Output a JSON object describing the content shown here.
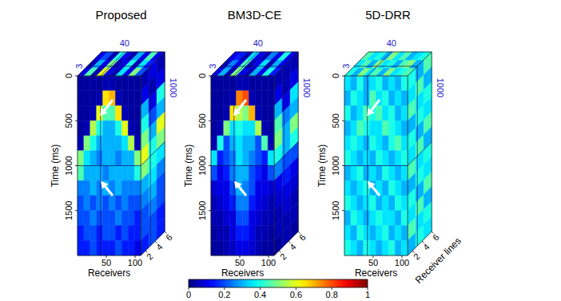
{
  "chart_data": {
    "type": "heatmap",
    "panels": [
      {
        "title": "Proposed",
        "xlabel": "Receivers",
        "ylabel": "Time (ms)",
        "xlim": [
          0,
          110
        ],
        "xticks": [
          50,
          100
        ],
        "ylim": [
          0,
          2000
        ],
        "yticks": [
          0,
          500,
          1000,
          1500
        ],
        "zlim": [
          1,
          6
        ],
        "zticks": [
          2,
          4,
          6
        ],
        "slice": {
          "receiver": 40,
          "line": 3,
          "time": 1000
        },
        "cells": [
          [
            0.03,
            0.03,
            0.03,
            0.03,
            0.05,
            0.05,
            0.03,
            0.03,
            0.03,
            0.03
          ],
          [
            0.03,
            0.03,
            0.03,
            0.05,
            0.65,
            0.7,
            0.05,
            0.03,
            0.03,
            0.03
          ],
          [
            0.03,
            0.03,
            0.05,
            0.6,
            0.45,
            0.45,
            0.65,
            0.05,
            0.03,
            0.03
          ],
          [
            0.03,
            0.05,
            0.55,
            0.4,
            0.3,
            0.3,
            0.4,
            0.6,
            0.05,
            0.03
          ],
          [
            0.05,
            0.5,
            0.4,
            0.3,
            0.3,
            0.3,
            0.3,
            0.35,
            0.55,
            0.05
          ],
          [
            0.5,
            0.35,
            0.3,
            0.25,
            0.3,
            0.3,
            0.25,
            0.3,
            0.3,
            0.5
          ],
          [
            0.45,
            0.3,
            0.3,
            0.3,
            0.25,
            0.3,
            0.3,
            0.3,
            0.3,
            0.4
          ],
          [
            0.25,
            0.25,
            0.3,
            0.25,
            0.3,
            0.25,
            0.3,
            0.25,
            0.25,
            0.25
          ],
          [
            0.2,
            0.25,
            0.2,
            0.25,
            0.2,
            0.25,
            0.2,
            0.25,
            0.2,
            0.2
          ],
          [
            0.2,
            0.2,
            0.25,
            0.2,
            0.2,
            0.2,
            0.25,
            0.2,
            0.2,
            0.15
          ],
          [
            0.15,
            0.2,
            0.2,
            0.15,
            0.2,
            0.2,
            0.15,
            0.2,
            0.15,
            0.15
          ],
          [
            0.15,
            0.15,
            0.2,
            0.15,
            0.15,
            0.15,
            0.2,
            0.15,
            0.15,
            0.1
          ]
        ],
        "top_cells": [
          [
            0.1,
            0.45,
            0.05,
            0.6,
            0.1,
            0.05,
            0.35,
            0.1,
            0.5,
            0.2
          ],
          [
            0.05,
            0.3,
            0.1,
            0.5,
            0.05,
            0.1,
            0.4,
            0.05,
            0.35,
            0.15
          ],
          [
            0.1,
            0.2,
            0.05,
            0.4,
            0.1,
            0.05,
            0.3,
            0.1,
            0.45,
            0.1
          ]
        ],
        "side_cells": [
          [
            0.05,
            0.1,
            0.05
          ],
          [
            0.1,
            0.05,
            0.1
          ],
          [
            0.3,
            0.1,
            0.4
          ],
          [
            0.4,
            0.2,
            0.3
          ],
          [
            0.5,
            0.3,
            0.6
          ],
          [
            0.6,
            0.4,
            0.5
          ],
          [
            0.5,
            0.4,
            0.35
          ],
          [
            0.3,
            0.35,
            0.25
          ],
          [
            0.25,
            0.3,
            0.2
          ],
          [
            0.2,
            0.25,
            0.2
          ],
          [
            0.2,
            0.2,
            0.15
          ],
          [
            0.15,
            0.2,
            0.15
          ]
        ]
      },
      {
        "title": "BM3D-CE",
        "xlabel": "Receivers",
        "ylabel": "Time (ms)",
        "xlim": [
          0,
          110
        ],
        "xticks": [
          50,
          100
        ],
        "ylim": [
          0,
          2000
        ],
        "yticks": [
          0,
          500,
          1000,
          1500
        ],
        "zlim": [
          1,
          6
        ],
        "zticks": [
          2,
          4,
          6
        ],
        "slice": {
          "receiver": 40,
          "line": 3,
          "time": 1000
        },
        "cells": [
          [
            0.03,
            0.03,
            0.03,
            0.03,
            0.05,
            0.05,
            0.03,
            0.03,
            0.03,
            0.03
          ],
          [
            0.03,
            0.03,
            0.03,
            0.05,
            0.75,
            0.8,
            0.05,
            0.03,
            0.03,
            0.03
          ],
          [
            0.03,
            0.03,
            0.05,
            0.65,
            0.55,
            0.5,
            0.7,
            0.05,
            0.03,
            0.03
          ],
          [
            0.03,
            0.05,
            0.5,
            0.35,
            0.4,
            0.35,
            0.35,
            0.55,
            0.05,
            0.03
          ],
          [
            0.05,
            0.4,
            0.2,
            0.3,
            0.35,
            0.3,
            0.3,
            0.2,
            0.45,
            0.05
          ],
          [
            0.35,
            0.15,
            0.2,
            0.25,
            0.35,
            0.3,
            0.25,
            0.2,
            0.15,
            0.35
          ],
          [
            0.2,
            0.1,
            0.15,
            0.25,
            0.3,
            0.3,
            0.2,
            0.15,
            0.1,
            0.2
          ],
          [
            0.08,
            0.1,
            0.1,
            0.2,
            0.3,
            0.25,
            0.2,
            0.1,
            0.1,
            0.08
          ],
          [
            0.05,
            0.08,
            0.1,
            0.15,
            0.25,
            0.25,
            0.15,
            0.1,
            0.08,
            0.05
          ],
          [
            0.05,
            0.05,
            0.08,
            0.1,
            0.2,
            0.2,
            0.1,
            0.08,
            0.05,
            0.05
          ],
          [
            0.03,
            0.05,
            0.05,
            0.1,
            0.15,
            0.15,
            0.1,
            0.05,
            0.05,
            0.03
          ],
          [
            0.03,
            0.03,
            0.05,
            0.08,
            0.1,
            0.1,
            0.08,
            0.05,
            0.03,
            0.03
          ]
        ],
        "top_cells": [
          [
            0.1,
            0.3,
            0.05,
            0.5,
            0.1,
            0.05,
            0.3,
            0.1,
            0.4,
            0.15
          ],
          [
            0.05,
            0.25,
            0.1,
            0.45,
            0.05,
            0.1,
            0.35,
            0.05,
            0.3,
            0.1
          ],
          [
            0.1,
            0.15,
            0.05,
            0.35,
            0.1,
            0.05,
            0.25,
            0.1,
            0.4,
            0.1
          ]
        ],
        "side_cells": [
          [
            0.05,
            0.05,
            0.05
          ],
          [
            0.1,
            0.05,
            0.1
          ],
          [
            0.3,
            0.1,
            0.35
          ],
          [
            0.45,
            0.25,
            0.3
          ],
          [
            0.5,
            0.3,
            0.5
          ],
          [
            0.4,
            0.3,
            0.4
          ],
          [
            0.25,
            0.2,
            0.2
          ],
          [
            0.1,
            0.15,
            0.1
          ],
          [
            0.08,
            0.1,
            0.08
          ],
          [
            0.05,
            0.08,
            0.05
          ],
          [
            0.05,
            0.05,
            0.05
          ],
          [
            0.03,
            0.05,
            0.03
          ]
        ]
      },
      {
        "title": "5D-DRR",
        "xlabel": "Receivers",
        "ylabel": "Time (ms)",
        "zlabel": "Receiver lines",
        "xlim": [
          0,
          110
        ],
        "xticks": [
          50,
          100
        ],
        "ylim": [
          0,
          2000
        ],
        "yticks": [
          0,
          500,
          1000,
          1500
        ],
        "zlim": [
          1,
          6
        ],
        "zticks": [
          2,
          4,
          6
        ],
        "slice": {
          "receiver": 40,
          "line": 3,
          "time": 1000
        },
        "cells": [
          [
            0.35,
            0.3,
            0.4,
            0.3,
            0.35,
            0.4,
            0.3,
            0.35,
            0.3,
            0.4
          ],
          [
            0.3,
            0.4,
            0.35,
            0.3,
            0.45,
            0.35,
            0.4,
            0.3,
            0.35,
            0.3
          ],
          [
            0.4,
            0.3,
            0.35,
            0.45,
            0.4,
            0.45,
            0.35,
            0.4,
            0.3,
            0.35
          ],
          [
            0.3,
            0.35,
            0.45,
            0.4,
            0.35,
            0.35,
            0.45,
            0.4,
            0.35,
            0.3
          ],
          [
            0.35,
            0.4,
            0.35,
            0.3,
            0.4,
            0.35,
            0.3,
            0.4,
            0.45,
            0.35
          ],
          [
            0.4,
            0.35,
            0.3,
            0.35,
            0.3,
            0.4,
            0.35,
            0.3,
            0.35,
            0.4
          ],
          [
            0.3,
            0.35,
            0.4,
            0.3,
            0.35,
            0.3,
            0.4,
            0.35,
            0.3,
            0.35
          ],
          [
            0.35,
            0.3,
            0.35,
            0.4,
            0.3,
            0.35,
            0.3,
            0.4,
            0.35,
            0.3
          ],
          [
            0.4,
            0.35,
            0.3,
            0.35,
            0.4,
            0.3,
            0.35,
            0.3,
            0.4,
            0.35
          ],
          [
            0.3,
            0.4,
            0.35,
            0.3,
            0.35,
            0.4,
            0.35,
            0.35,
            0.3,
            0.4
          ],
          [
            0.35,
            0.3,
            0.4,
            0.35,
            0.3,
            0.35,
            0.4,
            0.3,
            0.35,
            0.3
          ],
          [
            0.4,
            0.35,
            0.3,
            0.4,
            0.35,
            0.3,
            0.35,
            0.4,
            0.3,
            0.35
          ]
        ],
        "top_cells": [
          [
            0.4,
            0.3,
            0.5,
            0.35,
            0.45,
            0.3,
            0.5,
            0.35,
            0.4,
            0.45
          ],
          [
            0.35,
            0.45,
            0.3,
            0.5,
            0.35,
            0.4,
            0.3,
            0.45,
            0.5,
            0.3
          ],
          [
            0.45,
            0.35,
            0.4,
            0.3,
            0.5,
            0.35,
            0.45,
            0.3,
            0.35,
            0.4
          ]
        ],
        "side_cells": [
          [
            0.4,
            0.3,
            0.45
          ],
          [
            0.35,
            0.45,
            0.3
          ],
          [
            0.45,
            0.35,
            0.4
          ],
          [
            0.3,
            0.4,
            0.35
          ],
          [
            0.4,
            0.3,
            0.45
          ],
          [
            0.35,
            0.45,
            0.3
          ],
          [
            0.45,
            0.35,
            0.4
          ],
          [
            0.3,
            0.4,
            0.35
          ],
          [
            0.4,
            0.3,
            0.45
          ],
          [
            0.35,
            0.45,
            0.3
          ],
          [
            0.45,
            0.35,
            0.4
          ],
          [
            0.3,
            0.4,
            0.35
          ]
        ]
      }
    ],
    "colorbar": {
      "range": [
        0,
        1
      ],
      "ticks": [
        0,
        0.2,
        0.4,
        0.6,
        0.8,
        1
      ]
    }
  }
}
